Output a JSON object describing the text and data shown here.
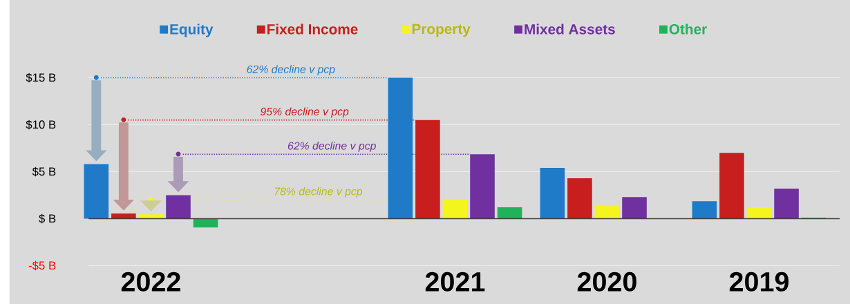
{
  "chart_data": {
    "type": "bar",
    "categories": [
      "2022",
      null,
      "2021",
      "2020",
      "2019"
    ],
    "series": [
      {
        "name": "Equity",
        "color": "#1f7ac8",
        "values": [
          5.8,
          null,
          15.0,
          5.4,
          1.85
        ]
      },
      {
        "name": "Fixed Income",
        "color": "#c81e1e",
        "values": [
          0.55,
          null,
          10.5,
          4.3,
          7.0
        ]
      },
      {
        "name": "Property",
        "color": "#f5f51e",
        "values": [
          0.45,
          null,
          2.0,
          1.45,
          1.2
        ]
      },
      {
        "name": "Mixed Assets",
        "color": "#7030a0",
        "values": [
          2.5,
          null,
          6.85,
          2.3,
          3.2
        ]
      },
      {
        "name": "Other",
        "color": "#1fb25a",
        "values": [
          -0.95,
          null,
          1.2,
          0,
          0.1
        ]
      }
    ],
    "ylim": [
      -5,
      15
    ],
    "yticks": [
      {
        "value": -5,
        "label": "-$5 B"
      },
      {
        "value": 0,
        "label": "$ B"
      },
      {
        "value": 5,
        "label": "$5 B"
      },
      {
        "value": 10,
        "label": "$10 B"
      },
      {
        "value": 15,
        "label": "$15 B"
      }
    ],
    "grid": "y",
    "legend": "top",
    "ref_lines": [
      {
        "axis": "y",
        "value": 15.0,
        "label": "62% decline v pcp",
        "color": "#1f7ac8",
        "line_style": "dotted"
      },
      {
        "axis": "y",
        "value": 10.5,
        "label": "95% decline v pcp",
        "color": "#c81e1e",
        "line_style": "dotted"
      },
      {
        "axis": "y",
        "value": 6.85,
        "label": "62% decline v pcp",
        "color": "#7030a0",
        "line_style": "dotted"
      },
      {
        "axis": "y",
        "value": 2.0,
        "label": "78% decline v pcp",
        "color": "#f5f51e",
        "line_style": "dotted"
      }
    ]
  }
}
